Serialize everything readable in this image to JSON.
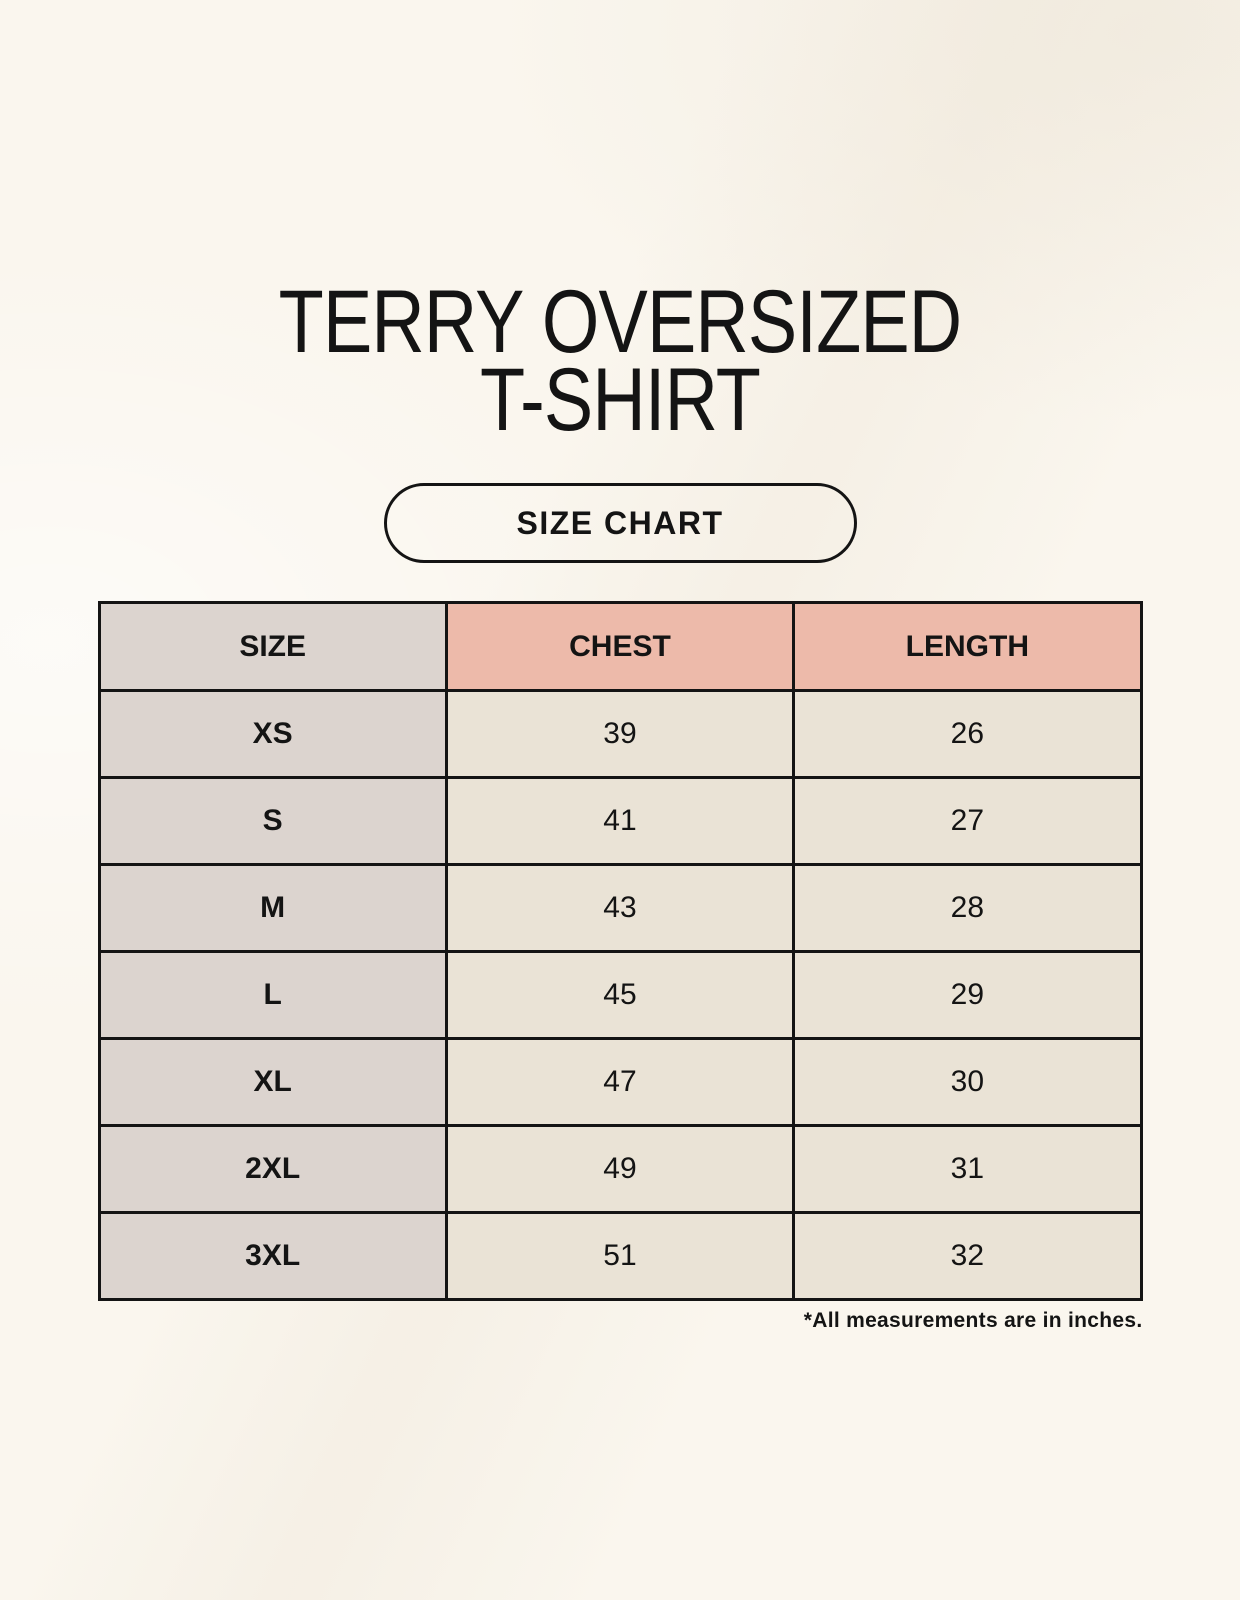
{
  "header": {
    "title_line1": "TERRY OVERSIZED",
    "title_line2": "T-SHIRT",
    "badge": "SIZE CHART"
  },
  "footer": {
    "note": "*All measurements are in inches."
  },
  "colors": {
    "background": "#faf6ee",
    "text": "#141414",
    "border": "#141414",
    "header_pink": "#edbaaa",
    "size_column_gray": "#dcd4cf",
    "data_cell_cream": "#eae3d6"
  },
  "chart_data": {
    "type": "table",
    "title": "TERRY OVERSIZED T-SHIRT",
    "subtitle": "SIZE CHART",
    "units": "inches",
    "columns": [
      "SIZE",
      "CHEST",
      "LENGTH"
    ],
    "rows": [
      {
        "size": "XS",
        "chest": 39,
        "length": 26
      },
      {
        "size": "S",
        "chest": 41,
        "length": 27
      },
      {
        "size": "M",
        "chest": 43,
        "length": 28
      },
      {
        "size": "L",
        "chest": 45,
        "length": 29
      },
      {
        "size": "XL",
        "chest": 47,
        "length": 30
      },
      {
        "size": "2XL",
        "chest": 49,
        "length": 31
      },
      {
        "size": "3XL",
        "chest": 51,
        "length": 32
      }
    ],
    "note": "*All measurements are in inches."
  }
}
